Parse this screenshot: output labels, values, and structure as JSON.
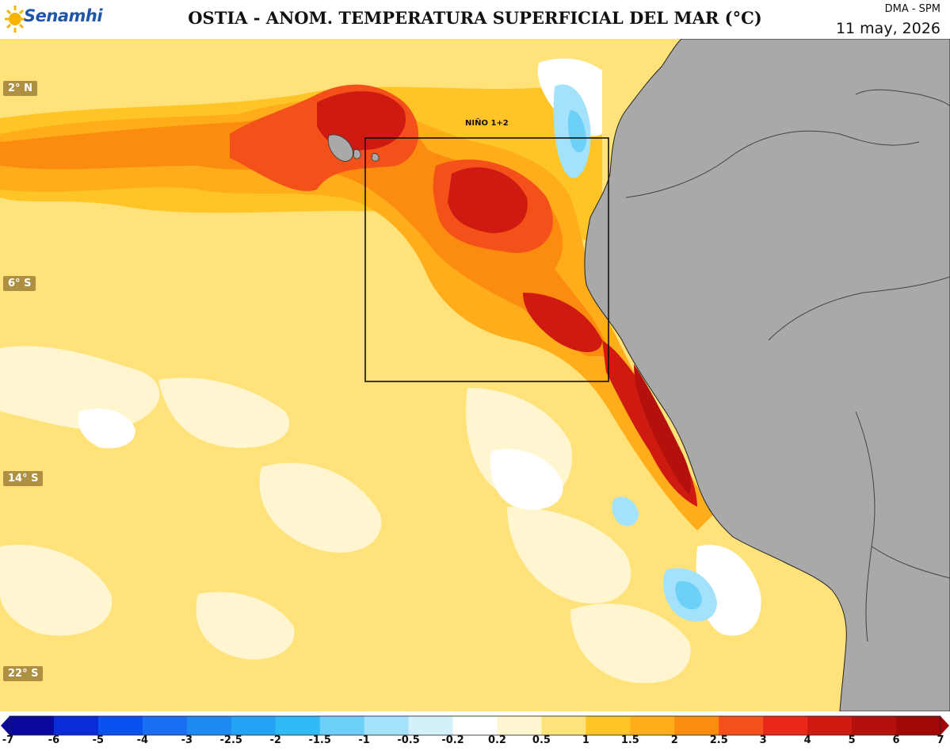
{
  "header": {
    "logo_text": "Senamhi",
    "title": "OSTIA - ANOM. TEMPERATURA SUPERFICIAL DEL MAR (°C)",
    "org": "DMA - SPM",
    "date": "11 may, 2026"
  },
  "map": {
    "latitude_labels": [
      "2° N",
      "6° S",
      "14° S",
      "22° S"
    ],
    "region_box_label": "NIÑO 1+2",
    "land_color": "#a9a9a9"
  },
  "colorbar": {
    "ticks": [
      "-7",
      "-6",
      "-5",
      "-4",
      "-3",
      "-2.5",
      "-2",
      "-1.5",
      "-1",
      "-0.5",
      "-0.2",
      "0.2",
      "0.5",
      "1",
      "1.5",
      "2",
      "2.5",
      "3",
      "4",
      "5",
      "6",
      "7"
    ],
    "colors": [
      "#08089e",
      "#0a2bd8",
      "#0a52f0",
      "#1a6ef2",
      "#1f8af2",
      "#24a3f5",
      "#30bbf7",
      "#6dd0f8",
      "#a3e2fa",
      "#d4f1fb",
      "#ffffff",
      "#fff6d0",
      "#ffe27a",
      "#ffc526",
      "#ffad1a",
      "#fb8c0f",
      "#f4511a",
      "#e9281a",
      "#cf1a12",
      "#b4100c",
      "#a00807"
    ]
  }
}
